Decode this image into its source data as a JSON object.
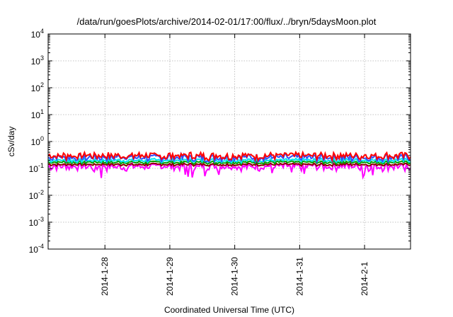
{
  "chart_data": {
    "type": "line",
    "title": "/data/run/goesPlots/archive/2014-02-01/17:00/flux/../bryn/5daysMoon.plot",
    "xlabel": "Coordinated Universal Time (UTC)",
    "ylabel": "cSv/day",
    "y_scale": "log",
    "ylim": [
      0.0001,
      10000
    ],
    "y_ticks": [
      {
        "base": "10",
        "exp": "4",
        "value": 10000
      },
      {
        "base": "10",
        "exp": "3",
        "value": 1000
      },
      {
        "base": "10",
        "exp": "2",
        "value": 100
      },
      {
        "base": "10",
        "exp": "1",
        "value": 10
      },
      {
        "base": "10",
        "exp": "0",
        "value": 1
      },
      {
        "base": "10",
        "exp": "-1",
        "value": 0.1
      },
      {
        "base": "10",
        "exp": "-2",
        "value": 0.01
      },
      {
        "base": "10",
        "exp": "-3",
        "value": 0.001
      },
      {
        "base": "10",
        "exp": "-4",
        "value": 0.0001
      }
    ],
    "xlim": [
      "2014-01-27T03:00",
      "2014-02-01T17:00"
    ],
    "x_ticks": [
      {
        "label": "2014-1-28",
        "date": "2014-01-28T00:00"
      },
      {
        "label": "2014-1-29",
        "date": "2014-01-29T00:00"
      },
      {
        "label": "2014-1-30",
        "date": "2014-01-30T00:00"
      },
      {
        "label": "2014-1-31",
        "date": "2014-01-31T00:00"
      },
      {
        "label": "2014-2-1",
        "date": "2014-02-01T00:00"
      }
    ],
    "grid": true,
    "series": [
      {
        "color": "#ff00ff",
        "base": 0.12,
        "var": 0.35,
        "dips": true
      },
      {
        "color": "#8b0000",
        "base": 0.14,
        "var": 0.12,
        "dips": false
      },
      {
        "color": "#00a000",
        "base": 0.17,
        "var": 0.15,
        "dips": false
      },
      {
        "color": "#00e5ee",
        "base": 0.2,
        "var": 0.18,
        "dips": false
      },
      {
        "color": "#3050ff",
        "base": 0.26,
        "var": 0.35,
        "dips": false
      },
      {
        "color": "#ff0000",
        "base": 0.3,
        "var": 0.35,
        "dips": false
      }
    ]
  }
}
